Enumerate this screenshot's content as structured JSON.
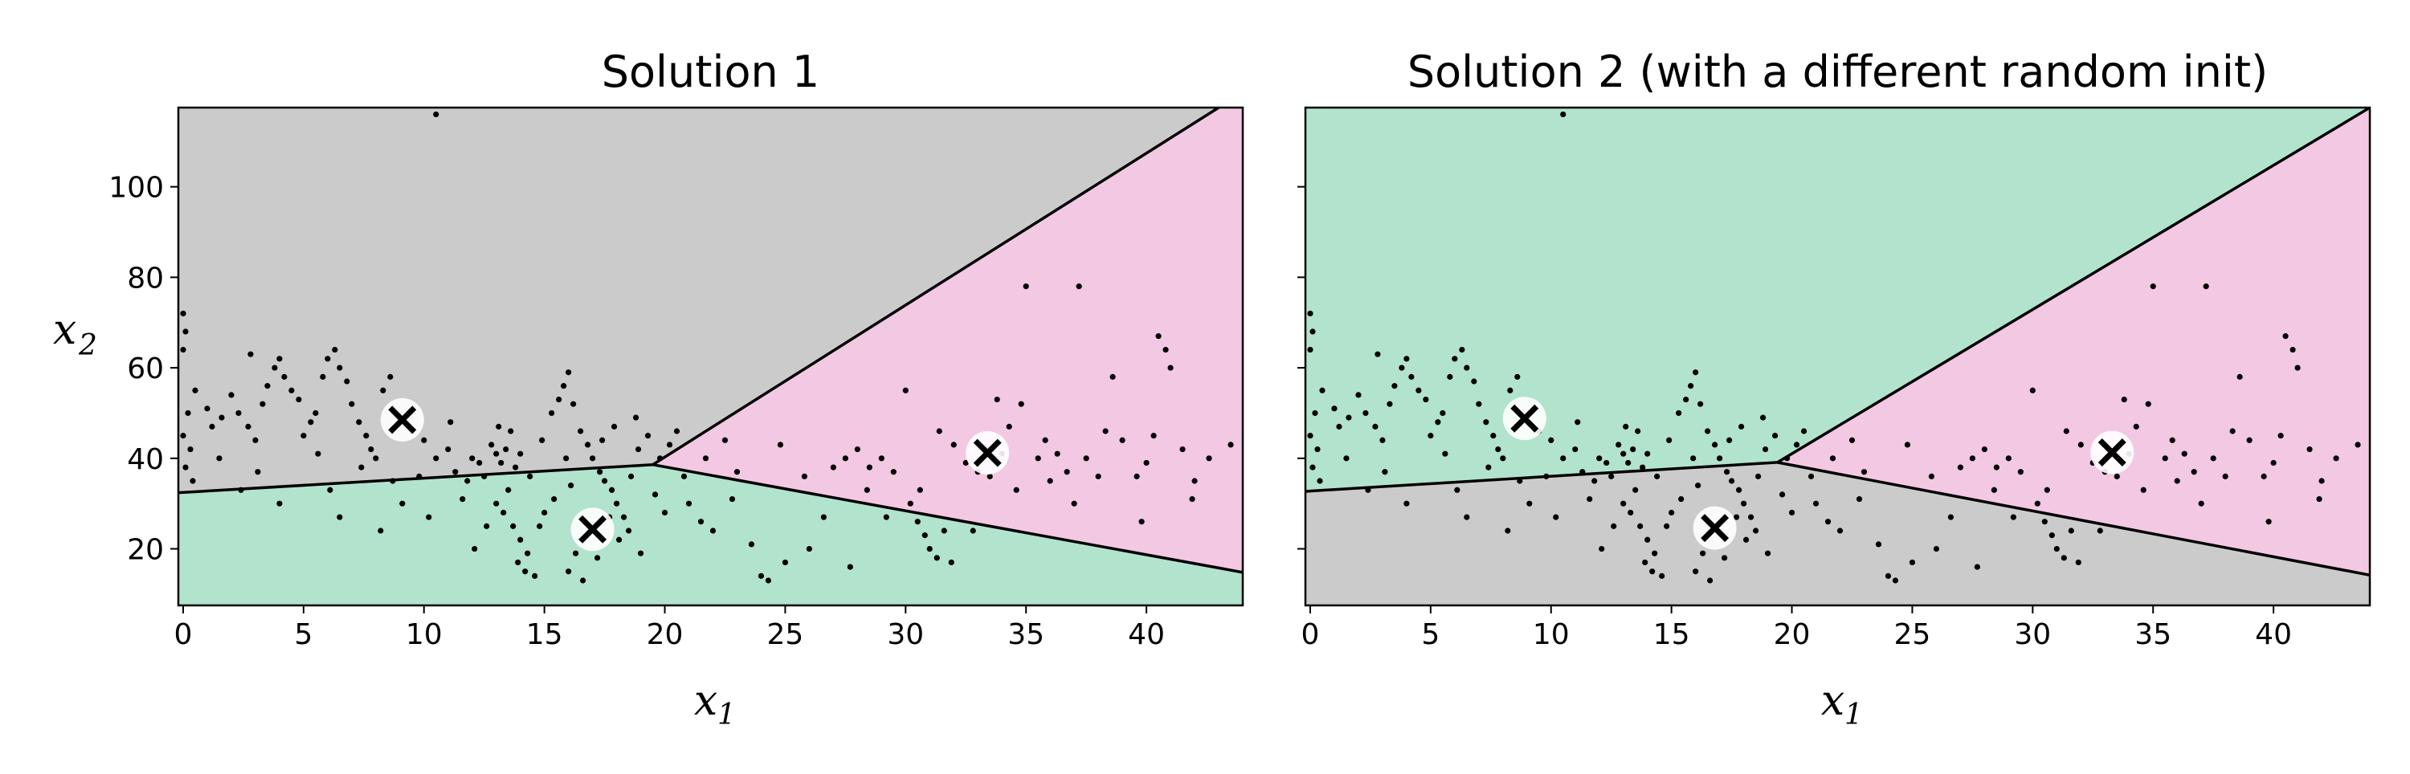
{
  "colors": {
    "background": "#ffffff",
    "gray_region": "#cbcbcb",
    "green_region": "#b2e3cd",
    "pink_region": "#f2c8e3",
    "boundary": "#000000",
    "points": "#000000",
    "centroid_circle": "#ffffff",
    "centroid_cross": "#000000"
  },
  "chart_data": [
    {
      "type": "scatter",
      "title": "Solution 1",
      "xlabel": "x",
      "xlabel_sub": "1",
      "ylabel": "x",
      "ylabel_sub": "2",
      "xlim": [
        -0.2,
        44
      ],
      "ylim": [
        7.5,
        117.5
      ],
      "xticks": [
        0,
        5,
        10,
        15,
        20,
        25,
        30,
        35,
        40
      ],
      "yticks": [
        20,
        40,
        60,
        80,
        100
      ],
      "show_yticklabels": true,
      "grid": false,
      "centroids": [
        {
          "x": 9.1,
          "y": 48.5
        },
        {
          "x": 17.0,
          "y": 24.3
        },
        {
          "x": 33.4,
          "y": 41.2
        }
      ],
      "regions": [
        {
          "color": "#cbcbcb",
          "polygon": [
            [
              -0.2,
              32.4
            ],
            [
              19.5,
              38.6
            ],
            [
              43.0,
              117.5
            ],
            [
              -0.2,
              117.5
            ]
          ]
        },
        {
          "color": "#b2e3cd",
          "polygon": [
            [
              -0.2,
              7.5
            ],
            [
              44,
              7.5
            ],
            [
              44,
              14.8
            ],
            [
              19.5,
              38.6
            ],
            [
              -0.2,
              32.4
            ]
          ]
        },
        {
          "color": "#f2c8e3",
          "polygon": [
            [
              19.5,
              38.6
            ],
            [
              44,
              14.8
            ],
            [
              44,
              117.5
            ],
            [
              43.0,
              117.5
            ]
          ]
        }
      ],
      "boundaries": [
        [
          [
            -0.2,
            32.4
          ],
          [
            19.5,
            38.6
          ]
        ],
        [
          [
            19.5,
            38.6
          ],
          [
            43.0,
            117.5
          ]
        ],
        [
          [
            19.5,
            38.6
          ],
          [
            44,
            14.8
          ]
        ]
      ]
    },
    {
      "type": "scatter",
      "title": "Solution 2 (with a different random init)",
      "xlabel": "x",
      "xlabel_sub": "1",
      "ylabel": "",
      "ylabel_sub": "",
      "xlim": [
        -0.2,
        44
      ],
      "ylim": [
        7.5,
        117.5
      ],
      "xticks": [
        0,
        5,
        10,
        15,
        20,
        25,
        30,
        35,
        40
      ],
      "yticks": [
        20,
        40,
        60,
        80,
        100
      ],
      "show_yticklabels": false,
      "grid": false,
      "centroids": [
        {
          "x": 8.9,
          "y": 48.8
        },
        {
          "x": 16.8,
          "y": 24.6
        },
        {
          "x": 33.3,
          "y": 41.3
        }
      ],
      "regions": [
        {
          "color": "#b2e3cd",
          "polygon": [
            [
              -0.2,
              32.7
            ],
            [
              19.4,
              39.1
            ],
            [
              44,
              117.5
            ],
            [
              -0.2,
              117.5
            ]
          ]
        },
        {
          "color": "#cbcbcb",
          "polygon": [
            [
              -0.2,
              7.5
            ],
            [
              44,
              7.5
            ],
            [
              44,
              14.2
            ],
            [
              19.4,
              39.1
            ],
            [
              -0.2,
              32.7
            ]
          ]
        },
        {
          "color": "#f2c8e3",
          "polygon": [
            [
              19.4,
              39.1
            ],
            [
              44,
              14.2
            ],
            [
              44,
              117.5
            ]
          ]
        }
      ],
      "boundaries": [
        [
          [
            -0.2,
            32.7
          ],
          [
            19.4,
            39.1
          ]
        ],
        [
          [
            19.4,
            39.1
          ],
          [
            44,
            117.5
          ]
        ],
        [
          [
            19.4,
            39.1
          ],
          [
            44,
            14.2
          ]
        ]
      ]
    }
  ],
  "points": [
    [
      0.0,
      72
    ],
    [
      0.1,
      68
    ],
    [
      0.0,
      64
    ],
    [
      0.2,
      50
    ],
    [
      0.0,
      45
    ],
    [
      0.3,
      42
    ],
    [
      0.1,
      38
    ],
    [
      0.4,
      35
    ],
    [
      1.0,
      51
    ],
    [
      1.2,
      47
    ],
    [
      1.6,
      49
    ],
    [
      2.0,
      54
    ],
    [
      2.3,
      50
    ],
    [
      2.7,
      47
    ],
    [
      3.0,
      44
    ],
    [
      3.3,
      52
    ],
    [
      3.5,
      56
    ],
    [
      3.8,
      60
    ],
    [
      4.0,
      62
    ],
    [
      4.2,
      58
    ],
    [
      4.5,
      55
    ],
    [
      4.8,
      53
    ],
    [
      5.0,
      45
    ],
    [
      5.3,
      48
    ],
    [
      5.5,
      50
    ],
    [
      5.8,
      58
    ],
    [
      6.0,
      62
    ],
    [
      6.3,
      64
    ],
    [
      6.5,
      60
    ],
    [
      6.8,
      57
    ],
    [
      7.0,
      52
    ],
    [
      7.3,
      48
    ],
    [
      7.6,
      45
    ],
    [
      7.8,
      42
    ],
    [
      8.0,
      40
    ],
    [
      8.3,
      55
    ],
    [
      8.6,
      58
    ],
    [
      9.5,
      46
    ],
    [
      10.0,
      44
    ],
    [
      10.5,
      40
    ],
    [
      11.0,
      42
    ],
    [
      11.3,
      37
    ],
    [
      11.8,
      35
    ],
    [
      12.0,
      40
    ],
    [
      12.3,
      39
    ],
    [
      12.5,
      36
    ],
    [
      12.8,
      43
    ],
    [
      13.0,
      41
    ],
    [
      13.2,
      39
    ],
    [
      13.4,
      42
    ],
    [
      13.6,
      46
    ],
    [
      13.8,
      38
    ],
    [
      14.0,
      41
    ],
    [
      13.5,
      33
    ],
    [
      13.0,
      30
    ],
    [
      13.3,
      28
    ],
    [
      13.7,
      25
    ],
    [
      14.0,
      22
    ],
    [
      14.3,
      19
    ],
    [
      13.9,
      17
    ],
    [
      14.2,
      15
    ],
    [
      14.6,
      14
    ],
    [
      14.8,
      25
    ],
    [
      15.0,
      28
    ],
    [
      15.3,
      50
    ],
    [
      15.6,
      53
    ],
    [
      15.8,
      56
    ],
    [
      16.0,
      59
    ],
    [
      16.2,
      52
    ],
    [
      16.5,
      46
    ],
    [
      16.8,
      43
    ],
    [
      17.0,
      40
    ],
    [
      17.3,
      37
    ],
    [
      17.5,
      35
    ],
    [
      17.8,
      33
    ],
    [
      18.0,
      30
    ],
    [
      18.3,
      27
    ],
    [
      18.5,
      24
    ],
    [
      16.6,
      13
    ],
    [
      16.0,
      15
    ],
    [
      16.3,
      19
    ],
    [
      17.2,
      18
    ],
    [
      18.1,
      22
    ],
    [
      18.6,
      36
    ],
    [
      18.9,
      42
    ],
    [
      19.3,
      45
    ],
    [
      19.8,
      40
    ],
    [
      20.2,
      43
    ],
    [
      20.5,
      46
    ],
    [
      21.0,
      30
    ],
    [
      21.5,
      26
    ],
    [
      22.0,
      24
    ],
    [
      22.5,
      44
    ],
    [
      23.0,
      37
    ],
    [
      24.0,
      14
    ],
    [
      24.3,
      13
    ],
    [
      25.0,
      17
    ],
    [
      26.0,
      20
    ],
    [
      27.0,
      38
    ],
    [
      27.5,
      40
    ],
    [
      28.0,
      42
    ],
    [
      28.5,
      38
    ],
    [
      29.0,
      40
    ],
    [
      29.5,
      37
    ],
    [
      30.0,
      55
    ],
    [
      30.2,
      30
    ],
    [
      30.5,
      26
    ],
    [
      30.8,
      23
    ],
    [
      31.0,
      20
    ],
    [
      31.3,
      18
    ],
    [
      31.6,
      24
    ],
    [
      31.9,
      17
    ],
    [
      32.0,
      43
    ],
    [
      32.5,
      39
    ],
    [
      33.0,
      37
    ],
    [
      33.5,
      36
    ],
    [
      34.0,
      41
    ],
    [
      34.3,
      47
    ],
    [
      34.8,
      52
    ],
    [
      35.0,
      78
    ],
    [
      35.5,
      40
    ],
    [
      36.0,
      35
    ],
    [
      36.3,
      41
    ],
    [
      36.7,
      37
    ],
    [
      37.2,
      78
    ],
    [
      37.5,
      40
    ],
    [
      38.0,
      36
    ],
    [
      38.6,
      58
    ],
    [
      39.0,
      44
    ],
    [
      39.6,
      36
    ],
    [
      40.0,
      39
    ],
    [
      40.5,
      67
    ],
    [
      40.8,
      64
    ],
    [
      41.0,
      60
    ],
    [
      41.5,
      42
    ],
    [
      42.0,
      35
    ],
    [
      43.5,
      43
    ],
    [
      10.5,
      116
    ],
    [
      2.4,
      33
    ],
    [
      4.0,
      30
    ],
    [
      6.5,
      27
    ],
    [
      8.2,
      24
    ],
    [
      9.8,
      36
    ],
    [
      11.6,
      31
    ],
    [
      12.6,
      25
    ],
    [
      15.4,
      31
    ],
    [
      17.7,
      27
    ],
    [
      19.0,
      19
    ],
    [
      20.8,
      36
    ],
    [
      22.8,
      31
    ],
    [
      25.8,
      36
    ],
    [
      28.4,
      33
    ],
    [
      29.2,
      27
    ],
    [
      30.6,
      33
    ],
    [
      32.8,
      24
    ],
    [
      34.6,
      33
    ],
    [
      37.0,
      30
    ],
    [
      39.8,
      26
    ],
    [
      41.9,
      31
    ],
    [
      1.5,
      40
    ],
    [
      3.1,
      37
    ],
    [
      6.1,
      33
    ],
    [
      7.4,
      38
    ],
    [
      9.1,
      30
    ],
    [
      10.2,
      27
    ],
    [
      12.1,
      20
    ],
    [
      14.9,
      44
    ],
    [
      16.1,
      34
    ],
    [
      17.9,
      47
    ],
    [
      19.6,
      32
    ],
    [
      21.7,
      40
    ],
    [
      23.6,
      21
    ],
    [
      26.6,
      27
    ],
    [
      27.7,
      16
    ],
    [
      31.4,
      46
    ],
    [
      33.8,
      53
    ],
    [
      35.8,
      44
    ],
    [
      38.3,
      46
    ],
    [
      40.3,
      45
    ],
    [
      42.6,
      40
    ],
    [
      0.5,
      55
    ],
    [
      2.8,
      63
    ],
    [
      5.6,
      41
    ],
    [
      8.7,
      35
    ],
    [
      11.1,
      48
    ],
    [
      13.1,
      47
    ],
    [
      14.4,
      36
    ],
    [
      15.9,
      40
    ],
    [
      17.4,
      44
    ],
    [
      18.8,
      49
    ],
    [
      20.0,
      28
    ],
    [
      24.8,
      43
    ]
  ]
}
